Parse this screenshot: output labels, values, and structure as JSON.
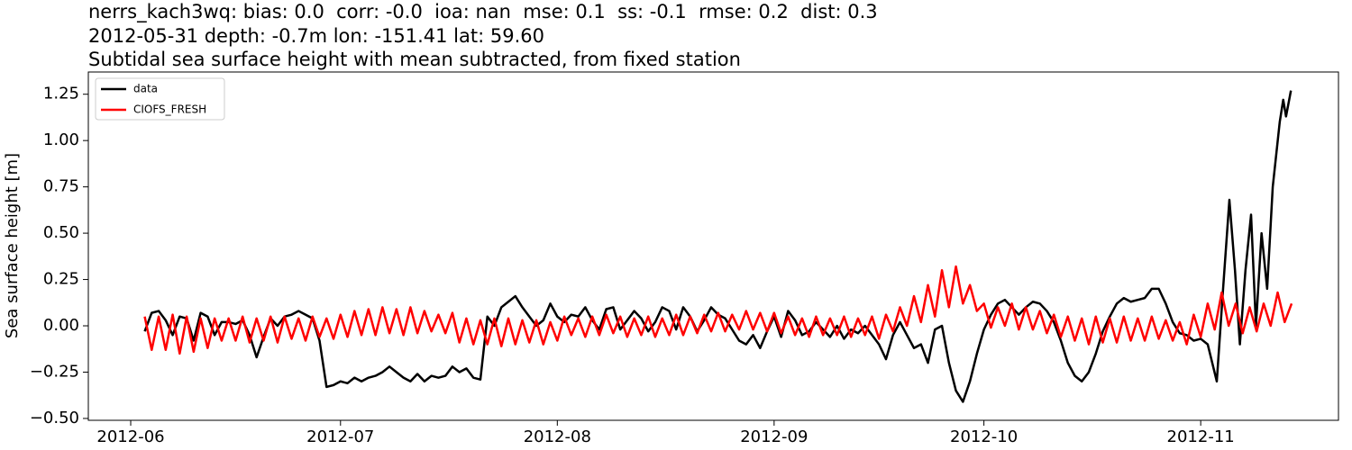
{
  "chart_data": {
    "type": "line",
    "title": [
      "nerrs_kach3wq: bias: 0.0  corr: -0.0  ioa: nan  mse: 0.1  ss: -0.1  rmse: 0.2  dist: 0.3",
      "2012-05-31 depth: -0.7m lon: -151.41 lat: 59.60",
      "Subtidal sea surface height with mean subtracted, from fixed station"
    ],
    "ylabel": "Sea surface height [m]",
    "xlim": [
      -6.06,
      172.7
    ],
    "xticks": [
      {
        "value": 0,
        "label": "2012-06"
      },
      {
        "value": 30,
        "label": "2012-07"
      },
      {
        "value": 61,
        "label": "2012-08"
      },
      {
        "value": 92,
        "label": "2012-09"
      },
      {
        "value": 122,
        "label": "2012-10"
      },
      {
        "value": 153,
        "label": "2012-11"
      }
    ],
    "ylim": [
      -0.51,
      1.37
    ],
    "yticks": [
      {
        "value": -0.5,
        "label": "−0.50"
      },
      {
        "value": -0.25,
        "label": "−0.25"
      },
      {
        "value": 0,
        "label": "0.00"
      },
      0.25,
      {
        "value": 0.5,
        "label": "0.50"
      },
      0.75,
      {
        "value": 1,
        "label": "1.00"
      },
      1.25
    ],
    "grid": false,
    "legend": "upper left",
    "series": [
      {
        "name": "data",
        "color": "#000000",
        "x": [
          2,
          3,
          4,
          5,
          6,
          7,
          8,
          9,
          10,
          11,
          12,
          13,
          14,
          15,
          16,
          17,
          18,
          19,
          20,
          21,
          22,
          23,
          24,
          25,
          26,
          27,
          28,
          29,
          30,
          31,
          32,
          33,
          34,
          35,
          36,
          37,
          38,
          39,
          40,
          41,
          42,
          43,
          44,
          45,
          46,
          47,
          48,
          49,
          50,
          51,
          52,
          53,
          54,
          55,
          56,
          57,
          58,
          59,
          60,
          61,
          62,
          63,
          64,
          65,
          66,
          67,
          68,
          69,
          70,
          71,
          72,
          73,
          74,
          75,
          76,
          77,
          78,
          79,
          80,
          81,
          82,
          83,
          84,
          85,
          86,
          87,
          88,
          89,
          90,
          91,
          92,
          93,
          94,
          95,
          96,
          97,
          98,
          99,
          100,
          101,
          102,
          103,
          104,
          105,
          106,
          107,
          108,
          109,
          110,
          111,
          112,
          113,
          114,
          115,
          116,
          117,
          118,
          119,
          120,
          121,
          122,
          123,
          124,
          125,
          126,
          127,
          128,
          129,
          130,
          131,
          132,
          133,
          134,
          135,
          136,
          137,
          138,
          139,
          140,
          141,
          142,
          143,
          144,
          145,
          146,
          147,
          148,
          149,
          150,
          151,
          152,
          153,
          154.0,
          155.3,
          156.2,
          157.1,
          157.9,
          158.6,
          159.4,
          160.2,
          160.9,
          161.7,
          162.5,
          163.3,
          164.3,
          164.8,
          165.2,
          165.9
        ],
        "values": [
          -0.03,
          0.07,
          0.08,
          0.03,
          -0.05,
          0.05,
          0.04,
          -0.08,
          0.07,
          0.05,
          -0.05,
          0.02,
          0.02,
          0.01,
          0.03,
          -0.05,
          -0.17,
          -0.06,
          0.04,
          0.0,
          0.05,
          0.06,
          0.08,
          0.06,
          0.04,
          -0.08,
          -0.33,
          -0.32,
          -0.3,
          -0.31,
          -0.28,
          -0.3,
          -0.28,
          -0.27,
          -0.25,
          -0.22,
          -0.25,
          -0.28,
          -0.3,
          -0.26,
          -0.3,
          -0.27,
          -0.28,
          -0.27,
          -0.22,
          -0.25,
          -0.23,
          -0.28,
          -0.29,
          0.05,
          0.0,
          0.1,
          0.13,
          0.16,
          0.1,
          0.05,
          0.0,
          0.03,
          0.12,
          0.05,
          0.02,
          0.06,
          0.05,
          0.1,
          0.03,
          -0.02,
          0.09,
          0.1,
          -0.02,
          0.03,
          0.08,
          0.04,
          -0.03,
          0.02,
          0.1,
          0.08,
          -0.02,
          0.1,
          0.05,
          -0.03,
          0.03,
          0.1,
          0.06,
          0.04,
          -0.02,
          -0.08,
          -0.1,
          -0.05,
          -0.12,
          -0.03,
          0.05,
          -0.06,
          0.08,
          0.03,
          -0.05,
          -0.03,
          0.02,
          -0.02,
          -0.06,
          0.0,
          -0.07,
          -0.02,
          -0.04,
          0.0,
          -0.05,
          -0.1,
          -0.18,
          -0.05,
          0.02,
          -0.05,
          -0.12,
          -0.1,
          -0.2,
          -0.02,
          0.0,
          -0.2,
          -0.35,
          -0.41,
          -0.3,
          -0.15,
          -0.02,
          0.06,
          0.12,
          0.14,
          0.1,
          0.06,
          0.1,
          0.13,
          0.12,
          0.08,
          0.02,
          -0.08,
          -0.2,
          -0.27,
          -0.3,
          -0.25,
          -0.15,
          -0.03,
          0.05,
          0.12,
          0.15,
          0.13,
          0.14,
          0.15,
          0.2,
          0.2,
          0.12,
          0.02,
          -0.04,
          -0.05,
          -0.08,
          -0.07,
          -0.1,
          -0.3,
          0.2,
          0.68,
          0.3,
          -0.1,
          0.3,
          0.6,
          0.0,
          0.5,
          0.2,
          0.75,
          1.1,
          1.22,
          1.13,
          1.27
        ]
      },
      {
        "name": "CIOFS_FRESH",
        "color": "#ff0000",
        "x": [
          2,
          3,
          4,
          5,
          6,
          7,
          8,
          9,
          10,
          11,
          12,
          13,
          14,
          15,
          16,
          17,
          18,
          19,
          20,
          21,
          22,
          23,
          24,
          25,
          26,
          27,
          28,
          29,
          30,
          31,
          32,
          33,
          34,
          35,
          36,
          37,
          38,
          39,
          40,
          41,
          42,
          43,
          44,
          45,
          46,
          47,
          48,
          49,
          50,
          51,
          52,
          53,
          54,
          55,
          56,
          57,
          58,
          59,
          60,
          61,
          62,
          63,
          64,
          65,
          66,
          67,
          68,
          69,
          70,
          71,
          72,
          73,
          74,
          75,
          76,
          77,
          78,
          79,
          80,
          81,
          82,
          83,
          84,
          85,
          86,
          87,
          88,
          89,
          90,
          91,
          92,
          93,
          94,
          95,
          96,
          97,
          98,
          99,
          100,
          101,
          102,
          103,
          104,
          105,
          106,
          107,
          108,
          109,
          110,
          111,
          112,
          113,
          114,
          115,
          116,
          117,
          118,
          119,
          120,
          121,
          122,
          123,
          124,
          125,
          126,
          127,
          128,
          129,
          130,
          131,
          132,
          133,
          134,
          135,
          136,
          137,
          138,
          139,
          140,
          141,
          142,
          143,
          144,
          145,
          146,
          147,
          148,
          149,
          150,
          151,
          152,
          153,
          154,
          155,
          156,
          157,
          158,
          159,
          160,
          161,
          162,
          163,
          164,
          165,
          166
        ],
        "values": [
          0.05,
          -0.13,
          0.05,
          -0.13,
          0.06,
          -0.15,
          0.05,
          -0.14,
          0.04,
          -0.12,
          0.04,
          -0.08,
          0.04,
          -0.08,
          0.05,
          -0.09,
          0.04,
          -0.08,
          0.05,
          -0.09,
          0.05,
          -0.07,
          0.04,
          -0.08,
          0.05,
          -0.06,
          0.04,
          -0.07,
          0.06,
          -0.06,
          0.08,
          -0.05,
          0.09,
          -0.05,
          0.1,
          -0.04,
          0.09,
          -0.05,
          0.1,
          -0.04,
          0.08,
          -0.03,
          0.06,
          -0.04,
          0.07,
          -0.09,
          0.04,
          -0.1,
          0.03,
          -0.1,
          0.04,
          -0.11,
          0.04,
          -0.1,
          0.03,
          -0.09,
          0.03,
          -0.1,
          0.02,
          -0.08,
          0.05,
          -0.05,
          0.04,
          -0.06,
          0.05,
          -0.05,
          0.06,
          -0.04,
          0.05,
          -0.06,
          0.04,
          -0.05,
          0.05,
          -0.06,
          0.04,
          -0.05,
          0.06,
          -0.05,
          0.05,
          -0.04,
          0.06,
          -0.03,
          0.07,
          -0.03,
          0.06,
          -0.02,
          0.08,
          -0.02,
          0.07,
          -0.03,
          0.07,
          -0.04,
          0.05,
          -0.05,
          0.04,
          -0.06,
          0.05,
          -0.05,
          0.04,
          -0.05,
          0.05,
          -0.06,
          0.04,
          -0.05,
          0.05,
          -0.07,
          0.06,
          -0.03,
          0.1,
          0.0,
          0.16,
          0.02,
          0.22,
          0.05,
          0.3,
          0.1,
          0.32,
          0.12,
          0.22,
          0.08,
          0.12,
          -0.01,
          0.1,
          0.0,
          0.12,
          -0.02,
          0.1,
          -0.02,
          0.08,
          -0.04,
          0.06,
          -0.06,
          0.05,
          -0.08,
          0.04,
          -0.1,
          0.05,
          -0.09,
          0.04,
          -0.09,
          0.05,
          -0.08,
          0.04,
          -0.08,
          0.05,
          -0.07,
          0.03,
          -0.08,
          0.02,
          -0.1,
          0.06,
          -0.06,
          0.12,
          -0.02,
          0.18,
          0.0,
          0.12,
          -0.04,
          0.1,
          -0.03,
          0.12,
          0.0,
          0.18,
          0.02,
          0.12
        ]
      }
    ]
  }
}
